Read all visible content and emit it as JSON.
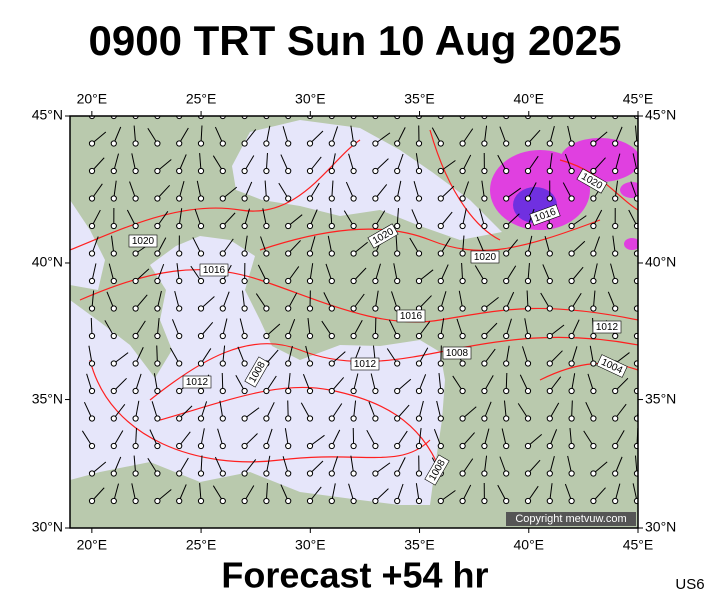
{
  "header": {
    "title": "0900 TRT Sun 10 Aug 2025"
  },
  "map": {
    "lon_ticks": [
      {
        "value": 20,
        "label": "20°E"
      },
      {
        "value": 25,
        "label": "25°E"
      },
      {
        "value": 30,
        "label": "30°E"
      },
      {
        "value": 35,
        "label": "35°E"
      },
      {
        "value": 40,
        "label": "40°E"
      },
      {
        "value": 45,
        "label": "45°E"
      }
    ],
    "lat_ticks": [
      {
        "value": 45,
        "label": "45°N"
      },
      {
        "value": 40,
        "label": "40°N"
      },
      {
        "value": 35,
        "label": "35°N"
      },
      {
        "value": 30,
        "label": "30°N"
      }
    ],
    "lon_range": [
      19,
      45
    ],
    "lat_range": [
      30,
      45
    ],
    "isobar_labels": [
      1020,
      1016,
      1020,
      1020,
      1016,
      1012,
      1008,
      1012,
      1008,
      1016,
      1020,
      1012,
      1004,
      1008
    ],
    "copyright": "Copyright metvuw.com"
  },
  "footer": {
    "forecast": "Forecast +54 hr",
    "code": "US6"
  }
}
